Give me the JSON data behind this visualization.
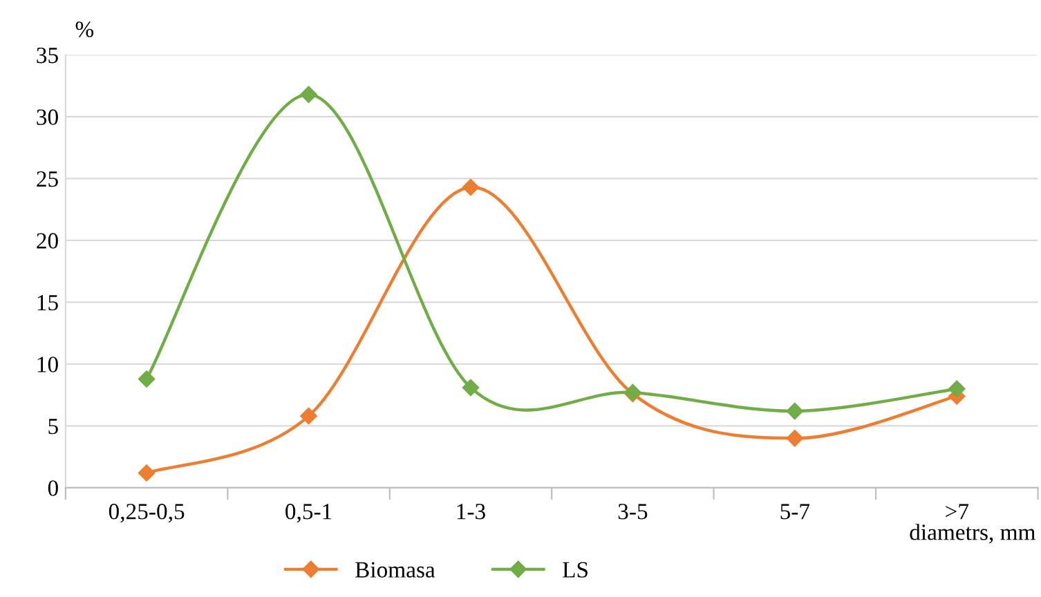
{
  "chart_data": {
    "type": "line",
    "ylabel": "%",
    "xlabel": "diametrs, mm",
    "categories": [
      "0,25-0,5",
      "0,5-1",
      "1-3",
      "3-5",
      "5-7",
      ">7"
    ],
    "series": [
      {
        "name": "Biomasa",
        "color": "#ed7d31",
        "values": [
          1.2,
          5.8,
          24.3,
          7.6,
          4.0,
          7.4
        ]
      },
      {
        "name": "LS",
        "color": "#70ad47",
        "values": [
          8.8,
          31.8,
          8.1,
          7.7,
          6.2,
          8.0
        ]
      }
    ],
    "ylim": [
      0,
      35
    ],
    "yticks": [
      0,
      5,
      10,
      15,
      20,
      25,
      30,
      35
    ],
    "grid": "y",
    "legend": "bottom",
    "marker": "diamond",
    "line_style": "solid"
  }
}
